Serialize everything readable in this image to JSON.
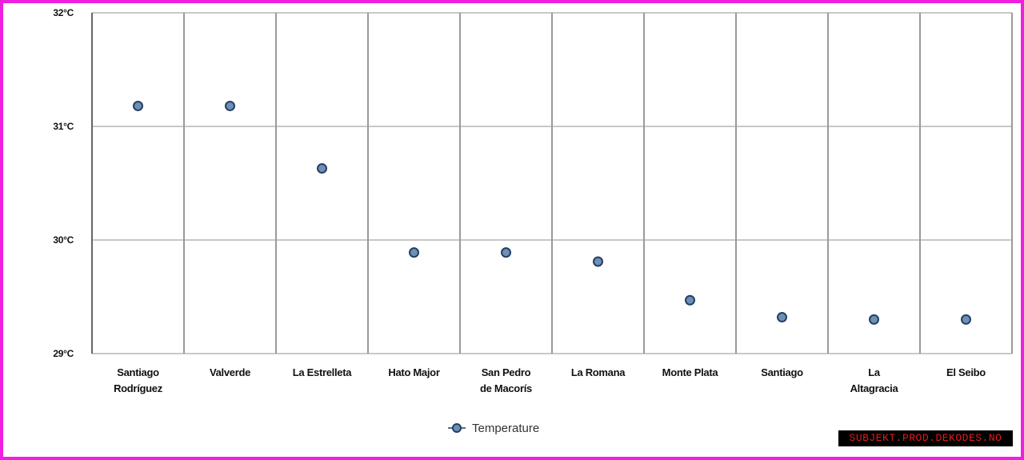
{
  "chart_data": {
    "type": "scatter",
    "categories": [
      [
        "Santiago",
        "Rodríguez"
      ],
      [
        "Valverde"
      ],
      [
        "La Estrelleta"
      ],
      [
        "Hato Major"
      ],
      [
        "San Pedro",
        "de Macorís"
      ],
      [
        "La Romana"
      ],
      [
        "Monte Plata"
      ],
      [
        "Santiago"
      ],
      [
        "La",
        "Altagracia"
      ],
      [
        "El Seibo"
      ]
    ],
    "series": [
      {
        "name": "Temperature",
        "values": [
          31.18,
          31.18,
          30.63,
          29.89,
          29.89,
          29.81,
          29.47,
          29.32,
          29.3,
          29.3
        ]
      }
    ],
    "yticks": [
      "32°C",
      "31°C",
      "30°C",
      "29°C"
    ],
    "ylim": [
      29,
      32
    ],
    "grid": true,
    "legend_position": "bottom-center",
    "colors": {
      "marker_fill": "#6f8fb5",
      "marker_stroke": "#223f66",
      "grid": "#c8c8c8",
      "frame": "#f01ee0"
    }
  },
  "watermark": "SUBJEKT.PROD.DEKODES.NO"
}
